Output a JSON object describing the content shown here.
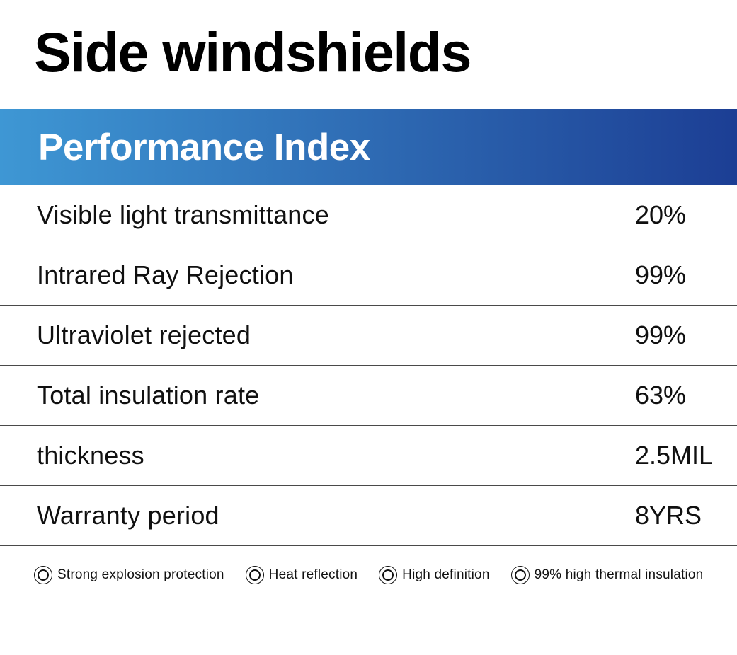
{
  "page": {
    "title": "Side windshields"
  },
  "banner": {
    "label": "Performance Index",
    "gradient_start_color": "#3E97D4",
    "gradient_end_color": "#1C3E94",
    "text_color": "#ffffff"
  },
  "table": {
    "rows": [
      {
        "label": "Visible light transmittance",
        "value": "20%"
      },
      {
        "label": "Intrared Ray Rejection",
        "value": "99%"
      },
      {
        "label": "Ultraviolet rejected",
        "value": "99%"
      },
      {
        "label": "Total insulation rate",
        "value": "63%"
      },
      {
        "label": "thickness",
        "value": "2.5MIL"
      },
      {
        "label": "Warranty period",
        "value": "8YRS"
      }
    ]
  },
  "features": {
    "icon": "double-ring-icon",
    "items": [
      {
        "label": "Strong explosion protection"
      },
      {
        "label": "Heat reflection"
      },
      {
        "label": "High definition"
      },
      {
        "label": "99% high thermal insulation"
      }
    ]
  }
}
